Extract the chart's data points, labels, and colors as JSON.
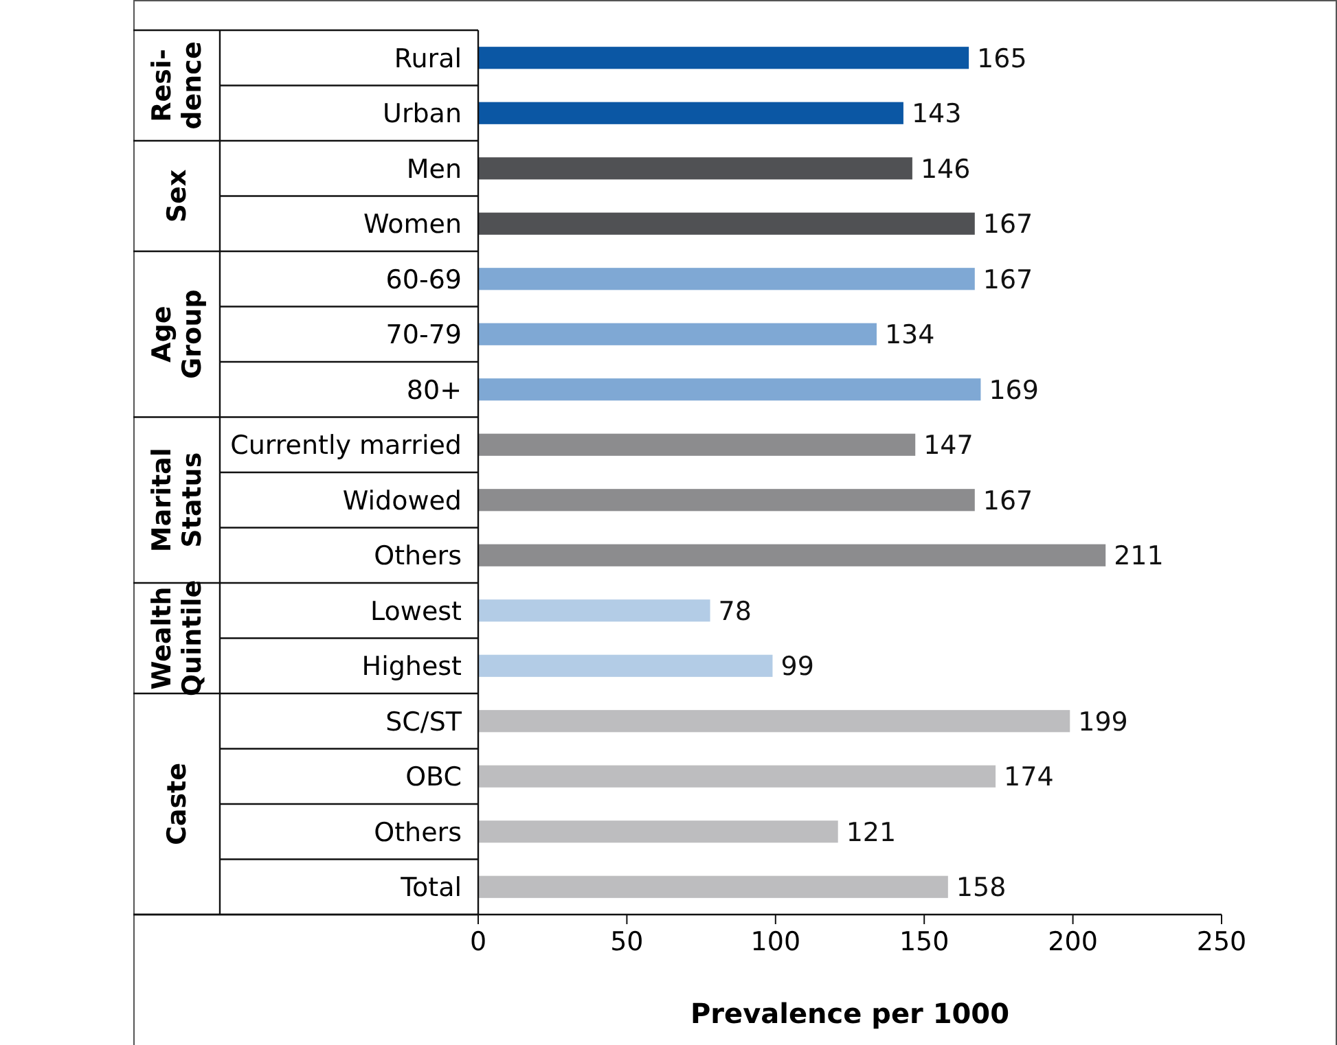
{
  "chart_data": {
    "type": "bar",
    "orientation": "horizontal",
    "xlabel": "Prevalence per 1000",
    "categories": [
      "Rural",
      "Urban",
      "Men",
      "Women",
      "60-69",
      "70-79",
      "80+",
      "Currently married",
      "Widowed",
      "Others",
      "Lowest",
      "Highest",
      "SC/ST",
      "OBC",
      "Others",
      "Total"
    ],
    "values": [
      165,
      143,
      146,
      167,
      167,
      134,
      169,
      147,
      167,
      211,
      78,
      99,
      199,
      174,
      121,
      158
    ],
    "colors": [
      "#0b57a4",
      "#0b57a4",
      "#505154",
      "#505154",
      "#7fa8d4",
      "#7fa8d4",
      "#7fa8d4",
      "#8c8c8e",
      "#8c8c8e",
      "#8c8c8e",
      "#b3cce6",
      "#b3cce6",
      "#bdbdbf",
      "#bdbdbf",
      "#bdbdbf",
      "#bdbdbf"
    ],
    "annotations": [
      "Resi-dence",
      "Sex",
      "Age Group",
      "Marital Status",
      "Wealth Quintile",
      "Caste"
    ],
    "xlim": [
      0,
      250
    ],
    "xticks": [
      0,
      50,
      100,
      150,
      200,
      250
    ],
    "data_labels": true
  }
}
